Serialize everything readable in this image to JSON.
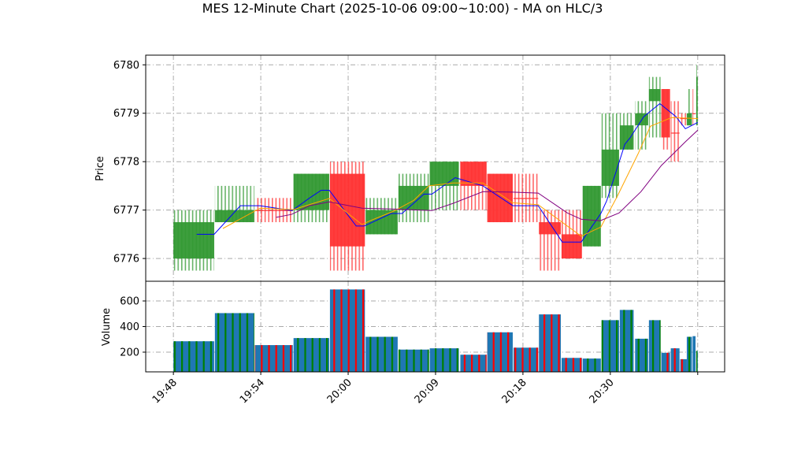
{
  "chart_data": {
    "type": "candlestick",
    "title": "MES 12-Minute Chart (2025-10-06 09:00~10:00) - MA on HLC/3",
    "price_panel": {
      "ylabel": "Price",
      "ylim": [
        6775.53,
        6780.2
      ],
      "yticks": [
        6776,
        6777,
        6778,
        6779,
        6780
      ]
    },
    "volume_panel": {
      "ylabel": "Volume",
      "ylim": [
        46,
        754
      ],
      "yticks": [
        200,
        400,
        600
      ]
    },
    "xlim": [
      -3.8,
      75.7
    ],
    "xticks": [
      {
        "pos": 0,
        "label": "19:48"
      },
      {
        "pos": 12,
        "label": "19:54"
      },
      {
        "pos": 24,
        "label": "20:00"
      },
      {
        "pos": 36,
        "label": "20:09"
      },
      {
        "pos": 48,
        "label": "20:18"
      },
      {
        "pos": 60,
        "label": "20:30"
      },
      {
        "pos": 72,
        "label": ""
      }
    ],
    "grid": true,
    "colors": {
      "up": "#339933",
      "down": "#ff3333",
      "volume": "#1f77b4",
      "ma_fast": "#0000ff",
      "ma_mid": "#ffa500",
      "ma_slow": "#800080"
    },
    "blocks": [
      {
        "x0": 0,
        "x1": 5.6,
        "open": 6776.0,
        "close": 6776.75,
        "high": 6777.0,
        "low": 6775.75,
        "volume": 285,
        "dir": "up"
      },
      {
        "x0": 5.7,
        "x1": 11.1,
        "open": 6776.75,
        "close": 6777.0,
        "high": 6777.5,
        "low": 6776.75,
        "volume": 505,
        "dir": "up"
      },
      {
        "x0": 11.2,
        "x1": 16.4,
        "open": 6777.0,
        "close": 6776.98,
        "high": 6777.25,
        "low": 6776.75,
        "volume": 255,
        "dir": "down"
      },
      {
        "x0": 16.5,
        "x1": 21.4,
        "open": 6777.0,
        "close": 6777.75,
        "high": 6777.75,
        "low": 6776.75,
        "volume": 310,
        "dir": "up"
      },
      {
        "x0": 21.5,
        "x1": 26.3,
        "open": 6777.75,
        "close": 6776.25,
        "high": 6778.0,
        "low": 6775.75,
        "volume": 690,
        "dir": "down"
      },
      {
        "x0": 26.4,
        "x1": 30.8,
        "open": 6776.5,
        "close": 6777.0,
        "high": 6777.25,
        "low": 6776.5,
        "volume": 320,
        "dir": "up"
      },
      {
        "x0": 30.9,
        "x1": 35.1,
        "open": 6777.0,
        "close": 6777.5,
        "high": 6777.75,
        "low": 6776.75,
        "volume": 220,
        "dir": "up"
      },
      {
        "x0": 35.2,
        "x1": 39.2,
        "open": 6777.5,
        "close": 6778.0,
        "high": 6778.0,
        "low": 6777.0,
        "volume": 230,
        "dir": "up"
      },
      {
        "x0": 39.4,
        "x1": 43.0,
        "open": 6778.0,
        "close": 6777.5,
        "high": 6778.0,
        "low": 6777.0,
        "volume": 180,
        "dir": "down"
      },
      {
        "x0": 43.1,
        "x1": 46.6,
        "open": 6777.75,
        "close": 6776.75,
        "high": 6777.75,
        "low": 6776.75,
        "volume": 355,
        "dir": "down"
      },
      {
        "x0": 46.7,
        "x1": 50.1,
        "open": 6777.25,
        "close": 6777.23,
        "high": 6777.75,
        "low": 6776.75,
        "volume": 235,
        "dir": "down"
      },
      {
        "x0": 50.2,
        "x1": 53.2,
        "open": 6776.75,
        "close": 6776.5,
        "high": 6777.0,
        "low": 6775.75,
        "volume": 495,
        "dir": "down"
      },
      {
        "x0": 53.3,
        "x1": 56.1,
        "open": 6776.5,
        "close": 6776.0,
        "high": 6777.0,
        "low": 6776.0,
        "volume": 155,
        "dir": "down"
      },
      {
        "x0": 56.2,
        "x1": 58.7,
        "open": 6776.25,
        "close": 6777.5,
        "high": 6777.5,
        "low": 6776.25,
        "volume": 150,
        "dir": "up"
      },
      {
        "x0": 58.8,
        "x1": 61.2,
        "open": 6777.5,
        "close": 6778.25,
        "high": 6779.0,
        "low": 6777.25,
        "volume": 450,
        "dir": "up"
      },
      {
        "x0": 61.3,
        "x1": 63.2,
        "open": 6778.25,
        "close": 6778.75,
        "high": 6779.0,
        "low": 6778.25,
        "volume": 530,
        "dir": "up"
      },
      {
        "x0": 63.4,
        "x1": 65.2,
        "open": 6778.75,
        "close": 6779.0,
        "high": 6779.25,
        "low": 6778.25,
        "volume": 305,
        "dir": "up"
      },
      {
        "x0": 65.3,
        "x1": 66.9,
        "open": 6779.25,
        "close": 6779.5,
        "high": 6779.75,
        "low": 6778.5,
        "volume": 450,
        "dir": "up"
      },
      {
        "x0": 67.0,
        "x1": 68.2,
        "open": 6779.5,
        "close": 6778.5,
        "high": 6779.5,
        "low": 6778.25,
        "volume": 195,
        "dir": "down"
      },
      {
        "x0": 68.3,
        "x1": 69.5,
        "open": 6778.6,
        "close": 6778.58,
        "high": 6779.25,
        "low": 6778.0,
        "volume": 230,
        "dir": "down"
      },
      {
        "x0": 69.6,
        "x1": 70.5,
        "open": 6778.9,
        "close": 6778.88,
        "high": 6779.0,
        "low": 6778.75,
        "volume": 145,
        "dir": "down"
      },
      {
        "x0": 70.5,
        "x1": 71.2,
        "open": 6778.75,
        "close": 6779.0,
        "high": 6779.5,
        "low": 6778.75,
        "volume": 320,
        "dir": "up"
      },
      {
        "x0": 71.3,
        "x1": 71.7,
        "open": 6779.0,
        "close": 6778.98,
        "high": 6779.5,
        "low": 6778.75,
        "volume": 325,
        "dir": "down"
      },
      {
        "x0": 71.8,
        "x1": 72.0,
        "open": 6778.75,
        "close": 6779.75,
        "high": 6780.0,
        "low": 6778.75,
        "volume": 210,
        "dir": "up"
      }
    ],
    "ma_fast": [
      [
        3.2,
        6776.5
      ],
      [
        5.6,
        6776.5
      ],
      [
        9.2,
        6777.09
      ],
      [
        11.9,
        6777.09
      ],
      [
        16.3,
        6776.99
      ],
      [
        18.7,
        6777.25
      ],
      [
        20.3,
        6777.41
      ],
      [
        21.4,
        6777.41
      ],
      [
        25.1,
        6776.67
      ],
      [
        26.2,
        6776.67
      ],
      [
        29.9,
        6776.93
      ],
      [
        31.4,
        6776.93
      ],
      [
        34.4,
        6777.33
      ],
      [
        35.5,
        6777.33
      ],
      [
        38.7,
        6777.67
      ],
      [
        42.5,
        6777.5
      ],
      [
        46.6,
        6777.09
      ],
      [
        50.1,
        6777.09
      ],
      [
        53.4,
        6776.34
      ],
      [
        56.0,
        6776.34
      ],
      [
        58.7,
        6776.93
      ],
      [
        59.5,
        6777.19
      ],
      [
        62.0,
        6778.36
      ],
      [
        62.7,
        6778.49
      ],
      [
        64.6,
        6778.93
      ],
      [
        66.8,
        6779.2
      ],
      [
        69.0,
        6778.93
      ],
      [
        70.3,
        6778.68
      ],
      [
        72.0,
        6778.81
      ]
    ],
    "ma_mid": [
      [
        6.8,
        6776.62
      ],
      [
        11.9,
        6777.04
      ],
      [
        16.5,
        6777.01
      ],
      [
        21.4,
        6777.24
      ],
      [
        25.9,
        6776.7
      ],
      [
        27.0,
        6776.78
      ],
      [
        30.3,
        6776.98
      ],
      [
        33.0,
        6777.2
      ],
      [
        35.1,
        6777.5
      ],
      [
        38.4,
        6777.56
      ],
      [
        42.5,
        6777.56
      ],
      [
        46.6,
        6777.15
      ],
      [
        50.1,
        6777.11
      ],
      [
        56.0,
        6776.46
      ],
      [
        58.7,
        6776.65
      ],
      [
        60.9,
        6777.27
      ],
      [
        63.8,
        6778.16
      ],
      [
        65.5,
        6778.73
      ],
      [
        68.4,
        6778.91
      ],
      [
        72.0,
        6778.89
      ]
    ],
    "ma_slow": [
      [
        14.1,
        6776.85
      ],
      [
        16.2,
        6776.91
      ],
      [
        18.7,
        6777.09
      ],
      [
        21.4,
        6777.17
      ],
      [
        25.9,
        6777.04
      ],
      [
        30.3,
        6777.02
      ],
      [
        35.5,
        6776.99
      ],
      [
        38.4,
        6777.14
      ],
      [
        42.5,
        6777.38
      ],
      [
        46.6,
        6777.37
      ],
      [
        50.1,
        6777.35
      ],
      [
        54.1,
        6776.94
      ],
      [
        56.0,
        6776.81
      ],
      [
        58.6,
        6776.78
      ],
      [
        61.2,
        6776.94
      ],
      [
        64.2,
        6777.38
      ],
      [
        67.0,
        6777.92
      ],
      [
        70.3,
        6778.41
      ],
      [
        72.0,
        6778.65
      ]
    ]
  }
}
